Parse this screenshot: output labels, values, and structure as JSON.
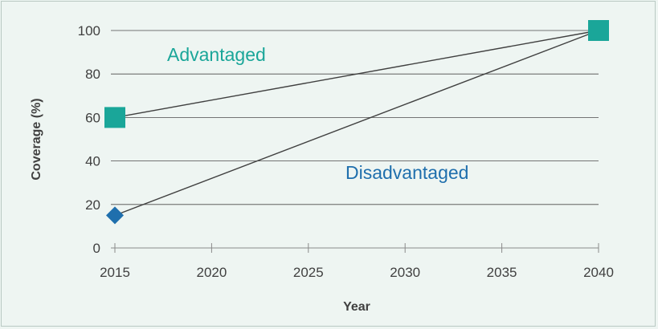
{
  "chart_data": {
    "type": "line",
    "title": "",
    "xlabel": "Year",
    "ylabel": "Coverage (%)",
    "xlim": [
      2015,
      2040
    ],
    "ylim": [
      0,
      100
    ],
    "x_ticks": [
      2015,
      2020,
      2025,
      2030,
      2035,
      2040
    ],
    "y_ticks": [
      0,
      20,
      40,
      60,
      80,
      100
    ],
    "grid": "horizontal",
    "line_color": "#404040",
    "series": [
      {
        "name": "Advantaged",
        "color": "#1aa699",
        "marker": "square",
        "x": [
          2015,
          2040
        ],
        "y": [
          60,
          100
        ]
      },
      {
        "name": "Disadvantaged",
        "color": "#1f6fad",
        "marker": "diamond",
        "x": [
          2015,
          2040
        ],
        "y": [
          15,
          100
        ]
      }
    ],
    "annotations": [
      {
        "text": "Advantaged",
        "color": "#1aa699"
      },
      {
        "text": "Disadvantaged",
        "color": "#1f6fad"
      }
    ]
  }
}
